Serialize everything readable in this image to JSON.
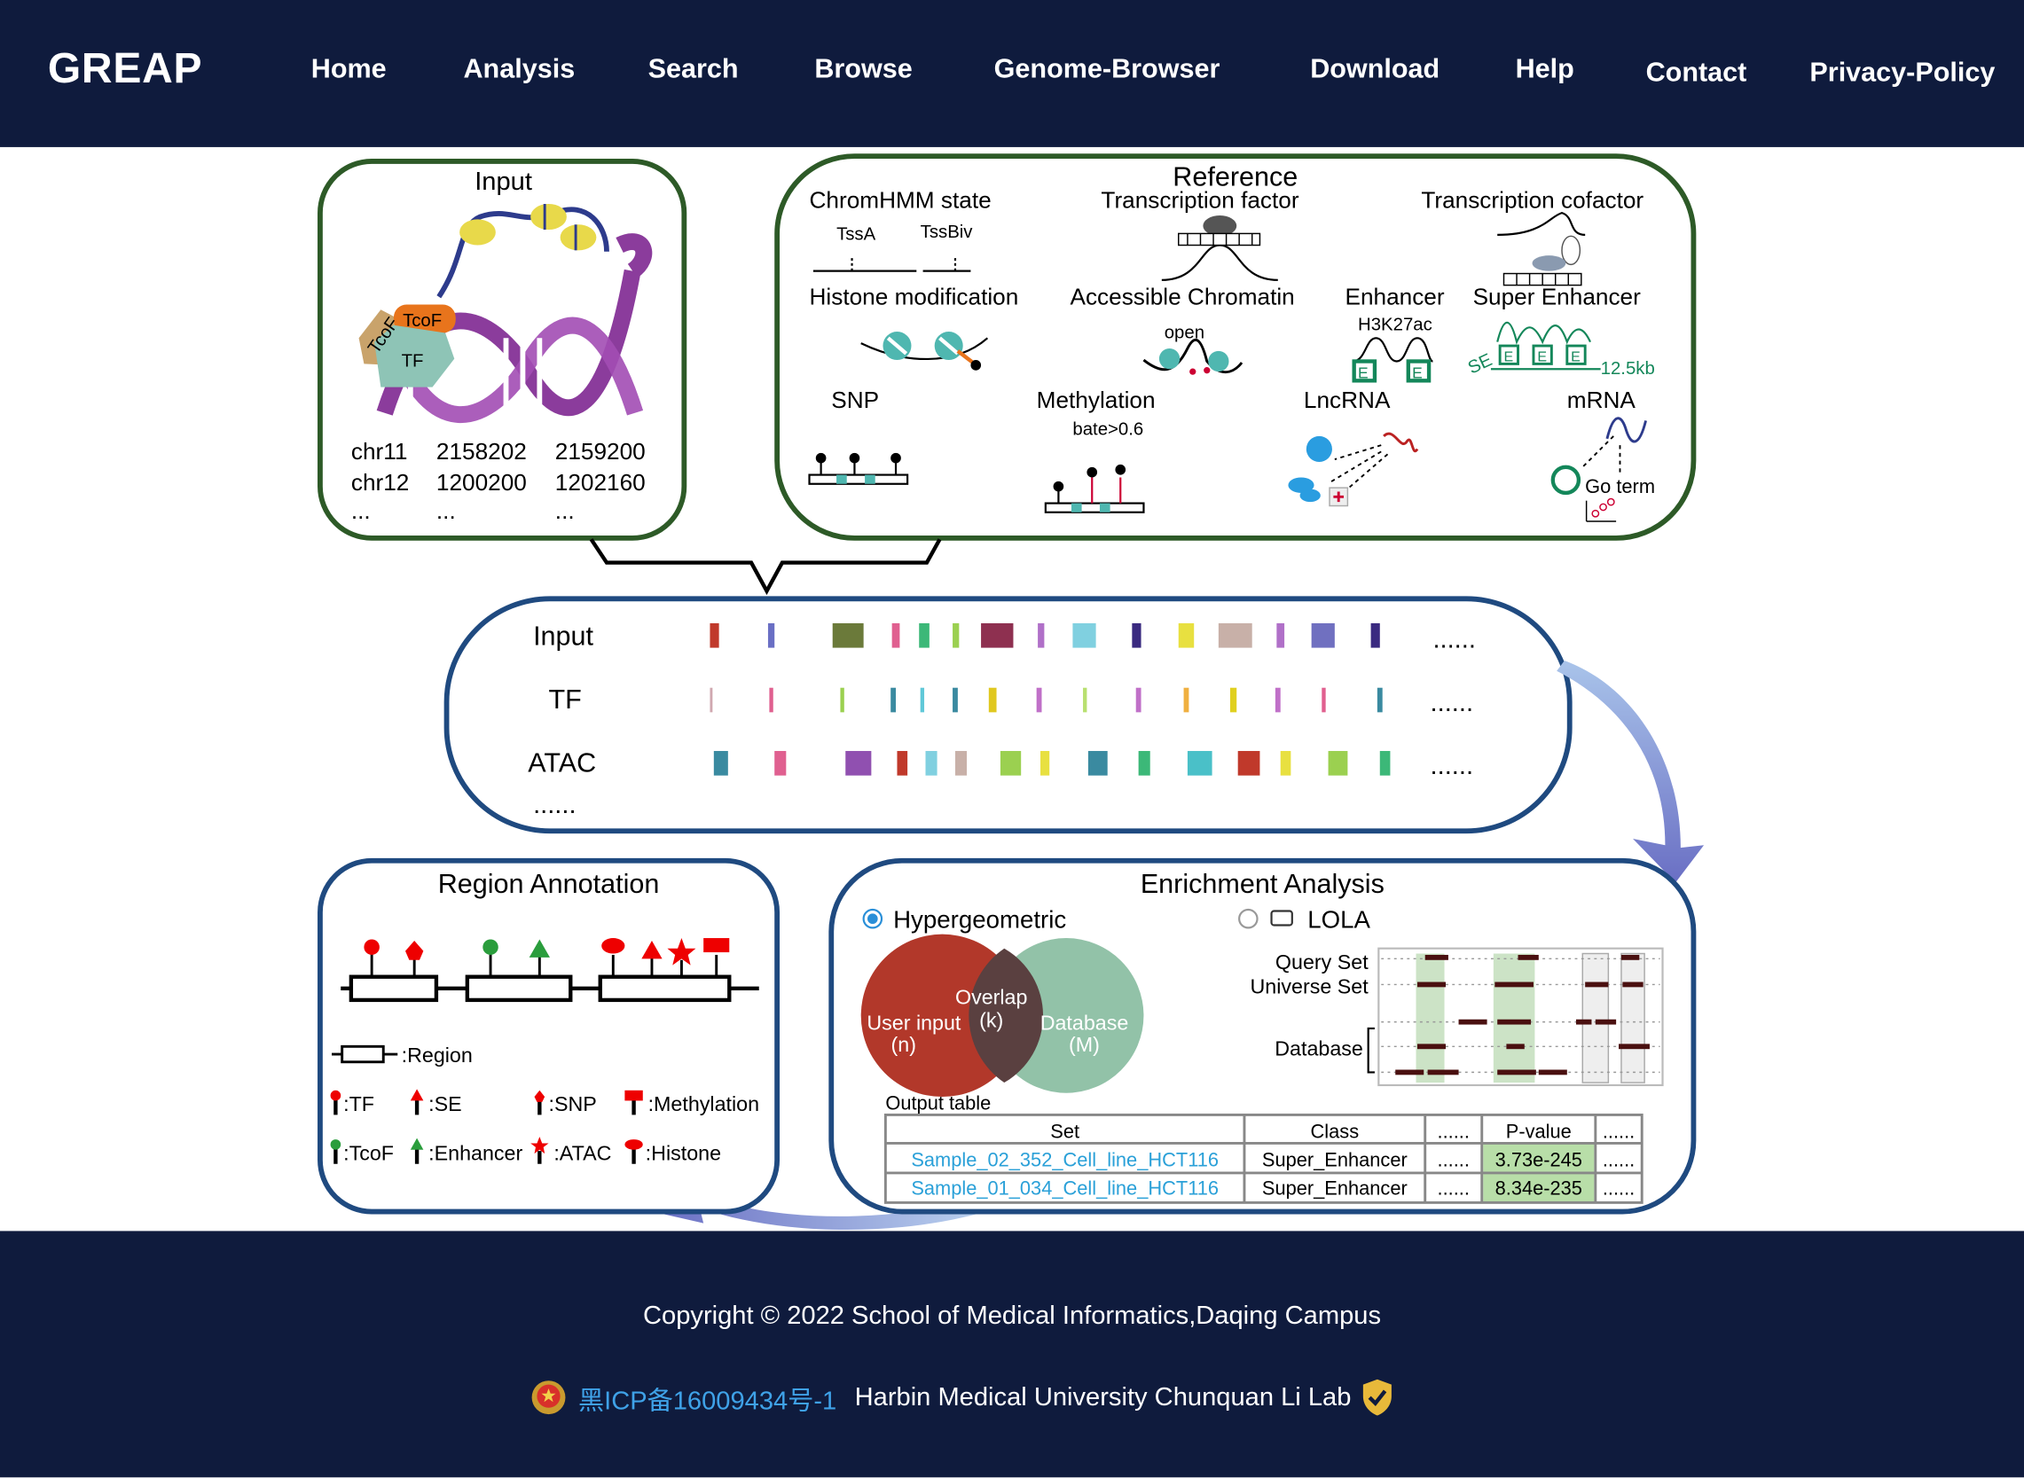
{
  "brand": "GREAP",
  "nav": [
    "Home",
    "Analysis",
    "Search",
    "Browse",
    "Genome-Browser",
    "Download",
    "Help",
    "Contact",
    "Privacy-Policy"
  ],
  "figure": {
    "input_panel": {
      "title": "Input",
      "labels": [
        "TcoF",
        "TcoF",
        "TF"
      ],
      "regions": [
        [
          "chr11",
          "2158202",
          "2159200"
        ],
        [
          "chr12",
          "1200200",
          "1202160"
        ],
        [
          "...",
          "...",
          "..."
        ]
      ]
    },
    "reference_panel": {
      "title": "Reference",
      "items": [
        "ChromHMM state",
        "Transcription factor",
        "Transcription cofactor",
        "Histone modification",
        "Accessible Chromatin",
        "Enhancer",
        "Super Enhancer",
        "SNP",
        "Methylation",
        "LncRNA",
        "mRNA"
      ],
      "sublabels": [
        "TssA",
        "TssBiv",
        "open",
        "H3K27ac",
        "E",
        "E",
        "SE",
        "E",
        "E",
        "E",
        "12.5kb",
        "bate>0.6",
        "Go term"
      ]
    },
    "tracks_panel": {
      "rows": [
        "Input",
        "TF",
        "ATAC"
      ],
      "ellipsis": "......",
      "more": "......"
    },
    "region_annotation": {
      "title": "Region Annotation",
      "legend": [
        ":Region",
        ":TF",
        ":SE",
        ":SNP",
        ":Methylation",
        ":TcoF",
        ":Enhancer",
        ":ATAC",
        ":Histone"
      ]
    },
    "enrichment": {
      "title": "Enrichment Analysis",
      "method1": "Hypergeometric",
      "method2": "LOLA",
      "venn": {
        "left": "User input",
        "left_n": "(n)",
        "overlap": "Overlap",
        "overlap_k": "(k)",
        "right": "Database",
        "right_m": "(M)"
      },
      "lola_labels": [
        "Query Set",
        "Universe Set",
        "Database"
      ],
      "output_label": "Output table",
      "table": {
        "headers": [
          "Set",
          "Class",
          "......",
          "P-value",
          "......"
        ],
        "rows": [
          [
            "Sample_02_352_Cell_line_HCT116",
            "Super_Enhancer",
            "......",
            "3.73e-245",
            "......"
          ],
          [
            "Sample_01_034_Cell_line_HCT116",
            "Super_Enhancer",
            "......",
            "8.34e-235",
            "......"
          ]
        ]
      }
    }
  },
  "footer": {
    "copyright": "Copyright © 2022 School of Medical Informatics,Daqing Campus",
    "icp": "黑ICP备16009434号-1",
    "lab": "Harbin Medical University Chunquan Li Lab"
  },
  "colors": {
    "nav_bg": "#0f1b3d",
    "green_border": "#2d5a27",
    "blue_border": "#1f4a80",
    "link": "#3fa2e8"
  }
}
